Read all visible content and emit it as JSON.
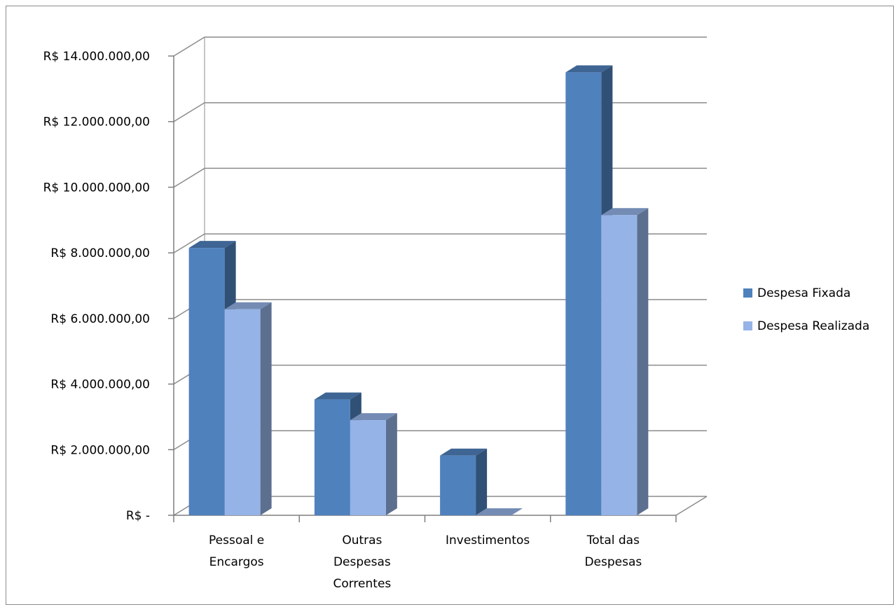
{
  "chart_data": {
    "type": "bar",
    "categories": [
      [
        "Pessoal e",
        "Encargos"
      ],
      [
        "Outras",
        "Despesas",
        "Correntes"
      ],
      [
        "Investimentos"
      ],
      [
        "Total das",
        "Despesas"
      ]
    ],
    "series": [
      {
        "name": "Despesa Fixada",
        "values": [
          8150000,
          3530000,
          1820000,
          13500000
        ],
        "color": "#4f81bd"
      },
      {
        "name": "Despesa Realizada",
        "values": [
          6280000,
          2900000,
          0,
          9150000
        ],
        "color": "#95b3e7"
      }
    ],
    "ylim": [
      0,
      14000000
    ],
    "yticks": [
      {
        "value": 0,
        "label": "R$ -"
      },
      {
        "value": 2000000,
        "label": "R$ 2.000.000,00"
      },
      {
        "value": 4000000,
        "label": "R$ 4.000.000,00"
      },
      {
        "value": 6000000,
        "label": "R$ 6.000.000,00"
      },
      {
        "value": 8000000,
        "label": "R$ 8.000.000,00"
      },
      {
        "value": 10000000,
        "label": "R$ 10.000.000,00"
      },
      {
        "value": 12000000,
        "label": "R$ 12.000.000,00"
      },
      {
        "value": 14000000,
        "label": "R$ 14.000.000,00"
      }
    ],
    "grid": true,
    "three_d": true,
    "legend_position": "right"
  }
}
